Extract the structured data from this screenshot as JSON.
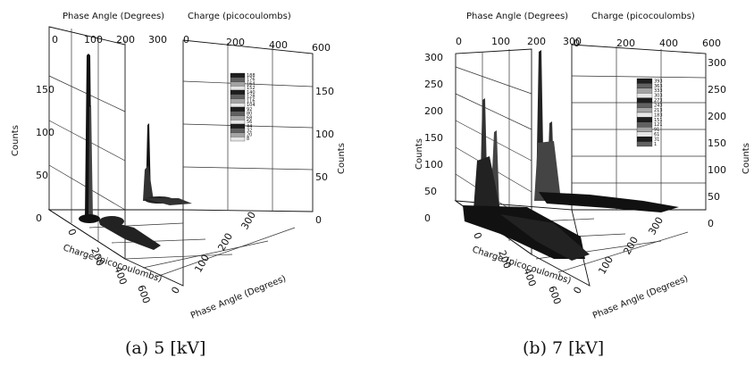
{
  "chart_data": [
    {
      "type": "3d-histogram",
      "caption": "(a) 5 [kV]",
      "x_axis": {
        "label": "Phase Angle (Degrees)",
        "ticks": [
          "0",
          "100",
          "200",
          "300"
        ],
        "range": [
          0,
          360
        ]
      },
      "y_axis": {
        "label": "Charge (picocoulombs)",
        "ticks": [
          "0",
          "200",
          "400",
          "600"
        ],
        "range": [
          0,
          600
        ]
      },
      "z_axis": {
        "label": "Counts",
        "ticks": [
          "0",
          "50",
          "100",
          "150"
        ],
        "range": [
          0,
          190
        ]
      },
      "legend_values": [
        "188",
        "176",
        "164",
        "152",
        "140",
        "128",
        "116",
        "104",
        "92",
        "80",
        "68",
        "56",
        "44",
        "32",
        "20",
        "8"
      ],
      "peaks": [
        {
          "phase": 45,
          "charge": 30,
          "counts": 182
        },
        {
          "phase": 225,
          "charge": 30,
          "counts": 95
        }
      ]
    },
    {
      "type": "3d-histogram",
      "caption": "(b) 7 [kV]",
      "x_axis": {
        "label": "Phase Angle (Degrees)",
        "ticks": [
          "0",
          "100",
          "200",
          "300"
        ],
        "range": [
          0,
          360
        ]
      },
      "y_axis": {
        "label": "Charge (picocoulombs)",
        "ticks": [
          "0",
          "200",
          "400",
          "600"
        ],
        "range": [
          0,
          600
        ]
      },
      "z_axis": {
        "label": "Counts",
        "ticks": [
          "0",
          "50",
          "100",
          "150",
          "200",
          "250",
          "300"
        ],
        "range": [
          0,
          310
        ]
      },
      "legend_values": [
        "393",
        "363",
        "333",
        "303",
        "273",
        "243",
        "213",
        "183",
        "151",
        "121",
        "91",
        "61",
        "31",
        "1"
      ],
      "peaks": [
        {
          "phase": 20,
          "charge": 40,
          "counts": 250
        },
        {
          "phase": 60,
          "charge": 40,
          "counts": 210
        },
        {
          "phase": 200,
          "charge": 40,
          "counts": 300
        },
        {
          "phase": 240,
          "charge": 40,
          "counts": 230
        }
      ]
    }
  ]
}
